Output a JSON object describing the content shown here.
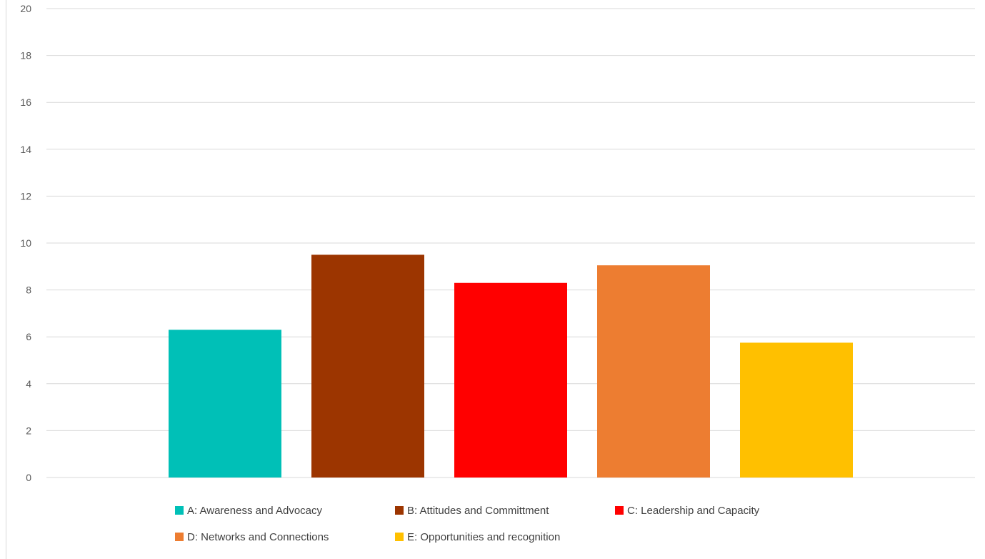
{
  "chart_data": {
    "type": "bar",
    "title": "",
    "xlabel": "",
    "ylabel": "",
    "categories": [
      "A: Awareness and Advocacy",
      "B: Attitudes and Committment",
      "C: Leadership and Capacity",
      "D: Networks and Connections",
      "E: Opportunities and recognition"
    ],
    "series": [
      {
        "values": [
          6.3,
          9.5,
          8.3,
          9.05,
          5.75
        ]
      }
    ],
    "colors": [
      "#00c0b7",
      "#9c3500",
      "#ff0000",
      "#ed7d31",
      "#ffc000"
    ],
    "ylim": [
      0,
      20
    ],
    "yticks": [
      "0",
      "2",
      "4",
      "6",
      "8",
      "10",
      "12",
      "14",
      "16",
      "18",
      "20"
    ],
    "grid": true,
    "gridColor": "#d9d9d9",
    "tickLabelColor": "#595959",
    "legend": {
      "position": "bottom",
      "items": [
        {
          "label": "A: Awareness and Advocacy",
          "color": "#00c0b7"
        },
        {
          "label": "B: Attitudes and Committment",
          "color": "#9c3500"
        },
        {
          "label": "C: Leadership and Capacity",
          "color": "#ff0000"
        },
        {
          "label": "D: Networks and Connections",
          "color": "#ed7d31"
        },
        {
          "label": "E: Opportunities and recognition",
          "color": "#ffc000"
        }
      ]
    }
  }
}
